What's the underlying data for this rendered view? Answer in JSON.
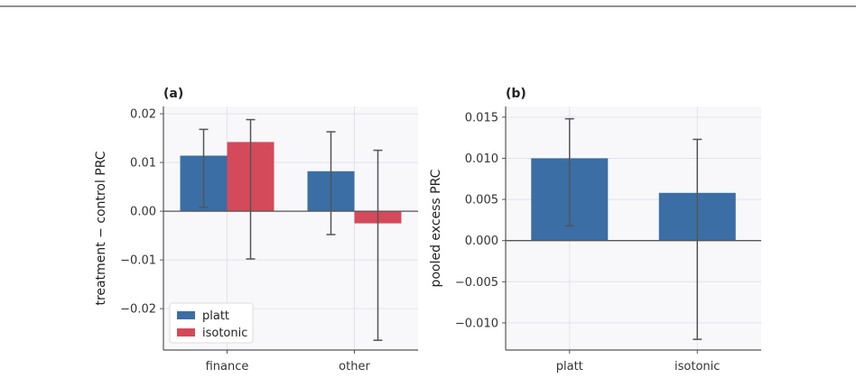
{
  "colors": {
    "platt": "#3a6ea5",
    "isotonic": "#d44a5a",
    "error_bar": "#555555",
    "grid": "#e2e2ea",
    "panel_bg": "#f8f8fb",
    "axis": "#555555"
  },
  "chart_data": [
    {
      "type": "bar",
      "panel": "(a)",
      "title": "(a)",
      "categories": [
        "finance",
        "other"
      ],
      "ylabel": "treatment − control PRC",
      "xlabel": "",
      "ylim": [
        -0.0285,
        0.0215
      ],
      "yticks": [
        0.02,
        0.01,
        0.0,
        -0.01,
        -0.02
      ],
      "ytick_labels": [
        "0.02",
        "0.01",
        "0.00",
        "−0.01",
        "−0.02"
      ],
      "grid": true,
      "legend": "lower-left",
      "series": [
        {
          "name": "platt",
          "color": "#3a6ea5",
          "values": [
            0.0114,
            0.0082
          ],
          "err_low": [
            0.0008,
            -0.0048
          ],
          "err_high": [
            0.0168,
            0.0163
          ]
        },
        {
          "name": "isotonic",
          "color": "#d44a5a",
          "values": [
            0.0142,
            -0.0025
          ],
          "err_low": [
            -0.0098,
            -0.0265
          ],
          "err_high": [
            0.0188,
            0.0125
          ]
        }
      ]
    },
    {
      "type": "bar",
      "panel": "(b)",
      "title": "(b)",
      "categories": [
        "platt",
        "isotonic"
      ],
      "ylabel": "pooled excess PRC",
      "xlabel": "",
      "ylim": [
        -0.0133,
        0.0163
      ],
      "yticks": [
        0.015,
        0.01,
        0.005,
        0.0,
        -0.005,
        -0.01
      ],
      "ytick_labels": [
        "0.015",
        "0.010",
        "0.005",
        "0.000",
        "−0.005",
        "−0.010"
      ],
      "grid": true,
      "series": [
        {
          "name": "",
          "color": "#3a6ea5",
          "values": [
            0.01,
            0.0058
          ],
          "err_low": [
            0.0018,
            -0.012
          ],
          "err_high": [
            0.0148,
            0.0123
          ]
        }
      ]
    }
  ]
}
